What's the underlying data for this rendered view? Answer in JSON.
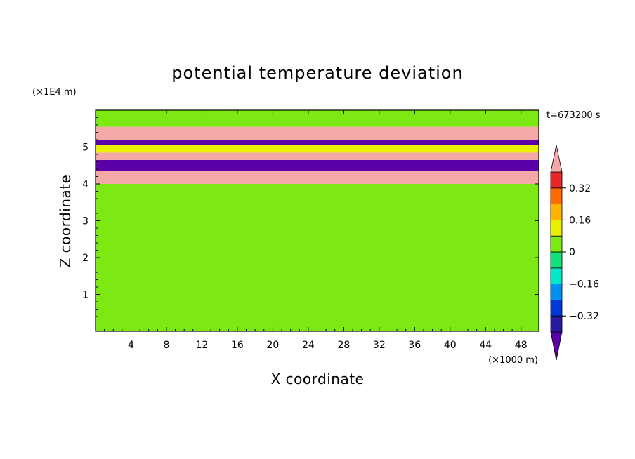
{
  "chart_data": {
    "type": "heatmap",
    "title": "potential temperature deviation",
    "time_label": "t=673200 s",
    "xlabel": "X coordinate",
    "ylabel": "Z coordinate",
    "x_unit": "(×1000 m)",
    "y_unit": "(×1E4 m)",
    "xlim": [
      0,
      50
    ],
    "ylim": [
      0,
      6
    ],
    "x_ticks": [
      4,
      8,
      12,
      16,
      20,
      24,
      28,
      32,
      36,
      40,
      44,
      48
    ],
    "y_ticks": [
      1,
      2,
      3,
      4,
      5
    ],
    "colorbar": {
      "levels": [
        -0.4,
        -0.32,
        -0.24,
        -0.16,
        -0.08,
        0,
        0.08,
        0.16,
        0.24,
        0.32,
        0.4
      ],
      "tick_labels": [
        "0.32",
        "0.16",
        "0",
        "−0.16",
        "−0.32"
      ],
      "tick_values": [
        0.32,
        0.16,
        0,
        -0.16,
        -0.32
      ],
      "colors_low_to_high": [
        "#5a00a8",
        "#2a1aa0",
        "#0038d8",
        "#0090f0",
        "#00e8c8",
        "#14e07c",
        "#7ce814",
        "#e8f000",
        "#ffb400",
        "#ff6a00",
        "#e82828",
        "#f4a8a8"
      ],
      "extend": "both"
    },
    "bands": [
      {
        "z": [
          0.0,
          0.85
        ],
        "value": 0.05
      },
      {
        "z": [
          0.85,
          4.0
        ],
        "value": 0.02
      },
      {
        "z": [
          4.0,
          4.35
        ],
        "value": 0.45
      },
      {
        "z": [
          4.35,
          4.65
        ],
        "value": -0.45
      },
      {
        "z": [
          4.65,
          4.85
        ],
        "value": 0.42
      },
      {
        "z": [
          4.85,
          5.05
        ],
        "value": 0.1
      },
      {
        "z": [
          5.05,
          5.2
        ],
        "value": -0.45
      },
      {
        "z": [
          5.2,
          5.55
        ],
        "value": 0.42
      },
      {
        "z": [
          5.55,
          6.0
        ],
        "value": 0.04
      }
    ]
  }
}
